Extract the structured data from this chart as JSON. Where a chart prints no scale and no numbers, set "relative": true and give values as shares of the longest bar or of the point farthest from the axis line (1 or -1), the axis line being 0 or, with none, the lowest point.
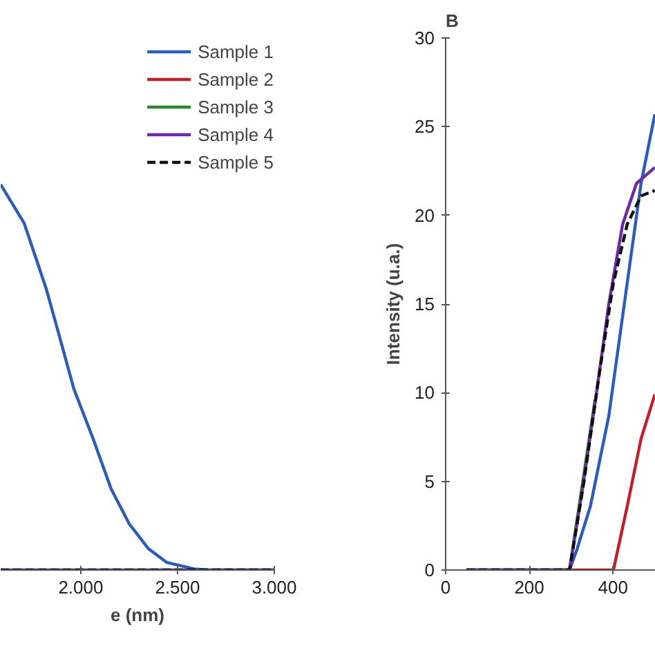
{
  "chart_data": [
    {
      "type": "line",
      "relative": true,
      "xlabel": "e (nm)",
      "xlim": [
        1586,
        3000
      ],
      "xticks": [
        {
          "value": 2000,
          "label": "2.000"
        },
        {
          "value": 2500,
          "label": "2.500"
        },
        {
          "value": 3000,
          "label": "3.000"
        }
      ],
      "tick_labels": "x",
      "grid": false,
      "legend": "top right",
      "series": [
        {
          "name": "Sample 1",
          "color": "#2a5cb8",
          "x": [
            1586,
            1707,
            1821,
            1893,
            1964,
            2064,
            2157,
            2250,
            2350,
            2443,
            2586,
            2657,
            3000
          ],
          "values": [
            1,
            0.9,
            0.73,
            0.6,
            0.47,
            0.34,
            0.21,
            0.12,
            0.055,
            0.02,
            0.003,
            0,
            0
          ]
        },
        {
          "name": "Sample 2",
          "color": "#c0202a"
        },
        {
          "name": "Sample 3",
          "color": "#2a8a2a"
        },
        {
          "name": "Sample 4",
          "color": "#6a2aa8",
          "x": [
            1586,
            3000
          ],
          "values": [
            0,
            0
          ]
        },
        {
          "name": "Sample 5",
          "color": "#111111",
          "line_style": "dashed",
          "x": [
            1586,
            3000
          ],
          "values": [
            0,
            0
          ]
        }
      ]
    },
    {
      "type": "line",
      "title": "B",
      "ylabel": "Intensity (u.a.)",
      "xlim": [
        0,
        502
      ],
      "xticks": [
        0,
        200,
        400
      ],
      "ylim": [
        0,
        30
      ],
      "yticks": [
        0,
        5,
        10,
        15,
        20,
        25,
        30
      ],
      "grid": false,
      "legend": false,
      "series": [
        {
          "color": "#2a5cb8",
          "x": [
            50,
            296,
            313,
            346,
            390,
            434,
            467,
            500
          ],
          "values": [
            0,
            0,
            1.1,
            3.6,
            8.7,
            16.2,
            21.8,
            25.7
          ]
        },
        {
          "color": "#c0202a",
          "x": [
            265,
            401,
            434,
            467,
            500
          ],
          "values": [
            0,
            0,
            3.6,
            7.4,
            9.9
          ]
        },
        {
          "color": "#2a8a2a",
          "x": [
            50,
            296,
            324,
            357
          ],
          "values": [
            0,
            0,
            4.4,
            9.6
          ]
        },
        {
          "color": "#6a2aa8",
          "x": [
            50,
            296,
            324,
            357,
            390,
            423,
            456,
            500
          ],
          "values": [
            0,
            0,
            4.1,
            9.4,
            15.0,
            19.5,
            21.8,
            22.7
          ]
        },
        {
          "color": "#111111",
          "line_style": "dashed",
          "x": [
            50,
            296,
            330,
            368,
            401,
            434,
            467,
            500
          ],
          "values": [
            0,
            0,
            4.9,
            11.2,
            16.2,
            19.5,
            21.1,
            21.4
          ]
        }
      ]
    }
  ]
}
